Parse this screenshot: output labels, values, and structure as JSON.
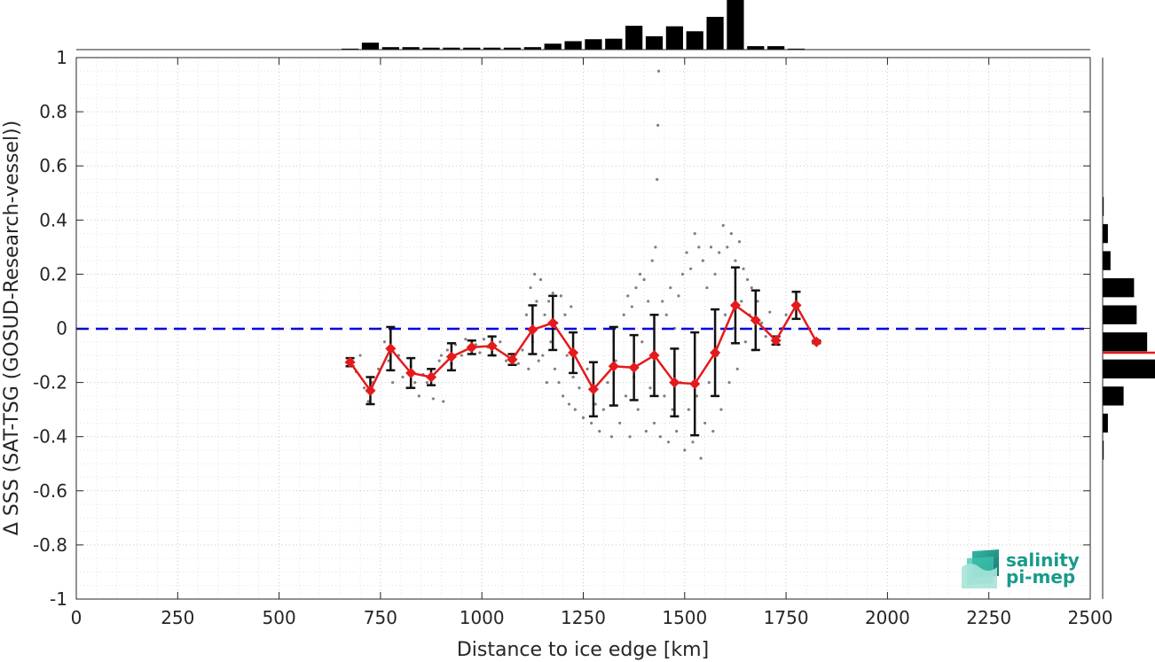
{
  "chart_data": {
    "type": "scatter",
    "xlabel": "Distance to ice edge [km]",
    "ylabel": "Δ SSS (SAT-TSG (GOSUD-Research-vessel))",
    "xlim": [
      0,
      2500
    ],
    "ylim": [
      -1,
      1
    ],
    "grid": true,
    "x_ticks": [
      0,
      250,
      500,
      750,
      1000,
      1250,
      1500,
      1750,
      2000,
      2250,
      2500
    ],
    "y_ticks": [
      -1,
      -0.8,
      -0.6,
      -0.4,
      -0.2,
      0,
      0.2,
      0.4,
      0.6,
      0.8,
      1
    ],
    "x_tick_labels": [
      "0",
      "250",
      "500",
      "750",
      "1000",
      "1250",
      "1500",
      "1750",
      "2000",
      "2250",
      "2500"
    ],
    "y_tick_labels": [
      "-1",
      "-0.8",
      "-0.6",
      "-0.4",
      "-0.2",
      "0",
      "0.2",
      "0.4",
      "0.6",
      "0.8",
      "1"
    ],
    "zero_line": {
      "y": 0,
      "color": "#0000dd",
      "style": "dashed"
    },
    "binned_mean": {
      "color": "#e41a1c",
      "x": [
        675,
        725,
        775,
        825,
        875,
        925,
        975,
        1025,
        1075,
        1125,
        1175,
        1225,
        1275,
        1325,
        1375,
        1425,
        1475,
        1525,
        1575,
        1625,
        1675,
        1725,
        1775,
        1825
      ],
      "y": [
        -0.125,
        -0.23,
        -0.075,
        -0.165,
        -0.18,
        -0.105,
        -0.07,
        -0.065,
        -0.115,
        -0.005,
        0.02,
        -0.09,
        -0.225,
        -0.14,
        -0.145,
        -0.1,
        -0.2,
        -0.205,
        -0.09,
        0.085,
        0.03,
        -0.045,
        0.085,
        -0.05
      ],
      "std": [
        0.015,
        0.05,
        0.08,
        0.055,
        0.03,
        0.05,
        0.025,
        0.035,
        0.02,
        0.09,
        0.1,
        0.075,
        0.1,
        0.145,
        0.12,
        0.15,
        0.125,
        0.19,
        0.16,
        0.14,
        0.11,
        0.015,
        0.05,
        0.005
      ]
    },
    "raw_scatter": {
      "color": "#808080",
      "points": [
        [
          680,
          -0.12
        ],
        [
          690,
          -0.16
        ],
        [
          700,
          -0.1
        ],
        [
          710,
          -0.22
        ],
        [
          720,
          -0.27
        ],
        [
          730,
          -0.2
        ],
        [
          745,
          -0.15
        ],
        [
          760,
          -0.05
        ],
        [
          770,
          -0.12
        ],
        [
          780,
          -0.2
        ],
        [
          795,
          -0.1
        ],
        [
          805,
          -0.18
        ],
        [
          815,
          -0.22
        ],
        [
          825,
          -0.14
        ],
        [
          835,
          -0.2
        ],
        [
          845,
          -0.25
        ],
        [
          855,
          -0.17
        ],
        [
          865,
          -0.2
        ],
        [
          880,
          -0.26
        ],
        [
          895,
          -0.12
        ],
        [
          900,
          -0.1
        ],
        [
          905,
          -0.27
        ],
        [
          915,
          -0.08
        ],
        [
          925,
          -0.13
        ],
        [
          935,
          -0.06
        ],
        [
          950,
          -0.1
        ],
        [
          960,
          -0.04
        ],
        [
          970,
          -0.08
        ],
        [
          985,
          -0.06
        ],
        [
          995,
          -0.09
        ],
        [
          1005,
          -0.04
        ],
        [
          1015,
          -0.07
        ],
        [
          1030,
          -0.1
        ],
        [
          1045,
          -0.05
        ],
        [
          1060,
          -0.12
        ],
        [
          1075,
          -0.1
        ],
        [
          1090,
          -0.13
        ],
        [
          1100,
          -0.08
        ],
        [
          1110,
          0.05
        ],
        [
          1115,
          -0.15
        ],
        [
          1120,
          0.15
        ],
        [
          1125,
          -0.05
        ],
        [
          1130,
          0.2
        ],
        [
          1135,
          0.1
        ],
        [
          1140,
          -0.12
        ],
        [
          1145,
          0.18
        ],
        [
          1150,
          -0.1
        ],
        [
          1155,
          0.05
        ],
        [
          1160,
          -0.2
        ],
        [
          1165,
          0.1
        ],
        [
          1170,
          -0.05
        ],
        [
          1175,
          0.13
        ],
        [
          1180,
          -0.15
        ],
        [
          1185,
          0.02
        ],
        [
          1190,
          -0.2
        ],
        [
          1195,
          0.12
        ],
        [
          1200,
          -0.25
        ],
        [
          1205,
          0.05
        ],
        [
          1210,
          -0.1
        ],
        [
          1215,
          -0.28
        ],
        [
          1220,
          0.08
        ],
        [
          1225,
          -0.18
        ],
        [
          1230,
          -0.3
        ],
        [
          1240,
          -0.22
        ],
        [
          1250,
          -0.33
        ],
        [
          1260,
          -0.15
        ],
        [
          1270,
          -0.35
        ],
        [
          1280,
          -0.28
        ],
        [
          1290,
          -0.38
        ],
        [
          1300,
          -0.3
        ],
        [
          1310,
          -0.2
        ],
        [
          1320,
          -0.4
        ],
        [
          1330,
          -0.12
        ],
        [
          1340,
          -0.35
        ],
        [
          1350,
          0.05
        ],
        [
          1355,
          -0.25
        ],
        [
          1360,
          0.12
        ],
        [
          1365,
          -0.4
        ],
        [
          1370,
          0.08
        ],
        [
          1375,
          -0.18
        ],
        [
          1380,
          0.15
        ],
        [
          1385,
          -0.3
        ],
        [
          1390,
          0.2
        ],
        [
          1395,
          -0.05
        ],
        [
          1400,
          0.18
        ],
        [
          1405,
          -0.38
        ],
        [
          1410,
          0.1
        ],
        [
          1415,
          -0.22
        ],
        [
          1420,
          0.25
        ],
        [
          1425,
          -0.35
        ],
        [
          1428,
          0.3
        ],
        [
          1430,
          -0.1
        ],
        [
          1432,
          0.55
        ],
        [
          1434,
          0.75
        ],
        [
          1436,
          0.95
        ],
        [
          1440,
          -0.4
        ],
        [
          1445,
          0.1
        ],
        [
          1450,
          -0.25
        ],
        [
          1455,
          0.05
        ],
        [
          1460,
          -0.42
        ],
        [
          1465,
          0.15
        ],
        [
          1470,
          -0.3
        ],
        [
          1475,
          0.0
        ],
        [
          1480,
          -0.38
        ],
        [
          1485,
          0.12
        ],
        [
          1490,
          -0.2
        ],
        [
          1495,
          0.2
        ],
        [
          1500,
          -0.45
        ],
        [
          1505,
          0.28
        ],
        [
          1510,
          -0.3
        ],
        [
          1515,
          0.22
        ],
        [
          1520,
          -0.42
        ],
        [
          1525,
          0.35
        ],
        [
          1530,
          -0.25
        ],
        [
          1535,
          0.3
        ],
        [
          1540,
          -0.48
        ],
        [
          1545,
          0.25
        ],
        [
          1550,
          -0.35
        ],
        [
          1555,
          0.15
        ],
        [
          1560,
          -0.2
        ],
        [
          1565,
          0.3
        ],
        [
          1570,
          -0.38
        ],
        [
          1575,
          0.2
        ],
        [
          1580,
          -0.1
        ],
        [
          1585,
          0.28
        ],
        [
          1590,
          -0.3
        ],
        [
          1595,
          0.38
        ],
        [
          1600,
          0.05
        ],
        [
          1605,
          0.3
        ],
        [
          1610,
          -0.2
        ],
        [
          1615,
          0.35
        ],
        [
          1620,
          0.0
        ],
        [
          1625,
          0.25
        ],
        [
          1630,
          -0.15
        ],
        [
          1635,
          0.32
        ],
        [
          1640,
          0.1
        ],
        [
          1645,
          0.22
        ],
        [
          1650,
          -0.05
        ],
        [
          1655,
          0.18
        ],
        [
          1660,
          0.05
        ],
        [
          1665,
          0.15
        ],
        [
          1670,
          -0.08
        ],
        [
          1680,
          0.1
        ],
        [
          1690,
          0.02
        ],
        [
          1700,
          -0.03
        ],
        [
          1710,
          0.06
        ],
        [
          1720,
          -0.04
        ],
        [
          1730,
          -0.06
        ],
        [
          1740,
          0.0
        ],
        [
          1750,
          0.05
        ]
      ]
    },
    "top_histogram": {
      "bin_centers": [
        675,
        725,
        775,
        825,
        875,
        925,
        975,
        1025,
        1075,
        1125,
        1175,
        1225,
        1275,
        1325,
        1375,
        1425,
        1475,
        1525,
        1575,
        1625,
        1675,
        1725,
        1775,
        1825
      ],
      "counts": [
        2,
        14,
        5,
        5,
        4,
        4,
        4,
        4,
        4,
        5,
        12,
        17,
        21,
        22,
        48,
        27,
        47,
        37,
        66,
        100,
        7,
        7,
        2,
        0
      ]
    },
    "right_histogram": {
      "bin_centers": [
        0.45,
        0.35,
        0.25,
        0.15,
        0.05,
        -0.05,
        -0.15,
        -0.25,
        -0.35,
        -0.45,
        -0.55
      ],
      "counts": [
        2,
        10,
        15,
        60,
        65,
        85,
        100,
        40,
        10,
        2,
        0
      ],
      "mean_line": {
        "y": -0.09,
        "color": "#e41a1c"
      }
    },
    "logo": {
      "line1": "salinity",
      "line2": "pi-mep",
      "color": "#1a9a8a"
    }
  }
}
